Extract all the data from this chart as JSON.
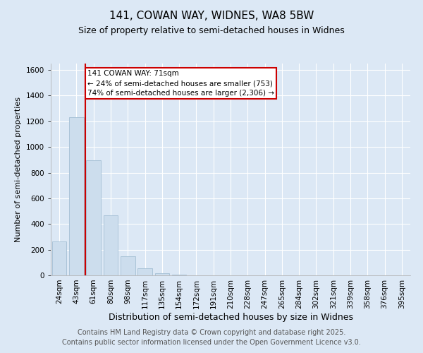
{
  "title": "141, COWAN WAY, WIDNES, WA8 5BW",
  "subtitle": "Size of property relative to semi-detached houses in Widnes",
  "xlabel": "Distribution of semi-detached houses by size in Widnes",
  "ylabel": "Number of semi-detached properties",
  "categories": [
    "24sqm",
    "43sqm",
    "61sqm",
    "80sqm",
    "98sqm",
    "117sqm",
    "135sqm",
    "154sqm",
    "172sqm",
    "191sqm",
    "210sqm",
    "228sqm",
    "247sqm",
    "265sqm",
    "284sqm",
    "302sqm",
    "321sqm",
    "339sqm",
    "358sqm",
    "376sqm",
    "395sqm"
  ],
  "values": [
    265,
    1230,
    895,
    470,
    150,
    55,
    15,
    5,
    0,
    0,
    0,
    0,
    0,
    0,
    0,
    0,
    0,
    0,
    0,
    0,
    0
  ],
  "bar_color": "#ccdded",
  "bar_edge_color": "#aac4d8",
  "vline_position": 1.5,
  "marker_label": "141 COWAN WAY: 71sqm",
  "annotation_line1": "← 24% of semi-detached houses are smaller (753)",
  "annotation_line2": "74% of semi-detached houses are larger (2,306) →",
  "vline_color": "#cc0000",
  "box_edge_color": "#cc0000",
  "ylim": [
    0,
    1650
  ],
  "yticks": [
    0,
    200,
    400,
    600,
    800,
    1000,
    1200,
    1400,
    1600
  ],
  "background_color": "#dce8f5",
  "footer_line1": "Contains HM Land Registry data © Crown copyright and database right 2025.",
  "footer_line2": "Contains public sector information licensed under the Open Government Licence v3.0.",
  "title_fontsize": 11,
  "subtitle_fontsize": 9,
  "xlabel_fontsize": 9,
  "ylabel_fontsize": 8,
  "tick_fontsize": 7.5,
  "footer_fontsize": 7,
  "annotation_fontsize": 7.5
}
